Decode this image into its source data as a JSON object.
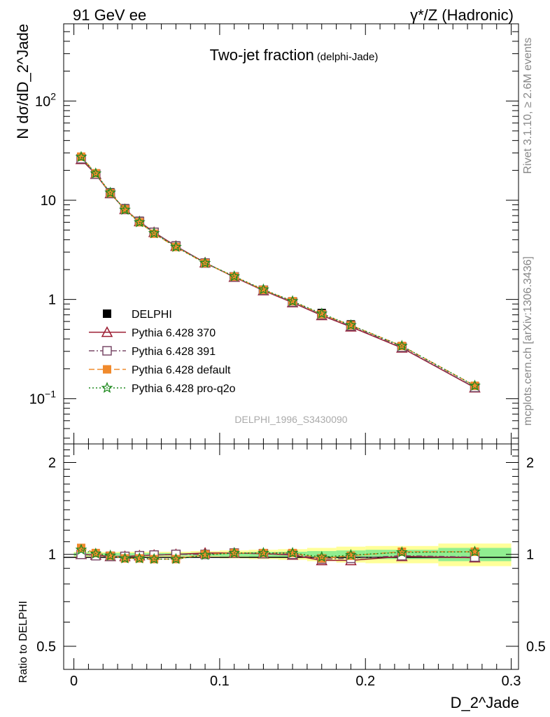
{
  "header": {
    "left": "91 GeV ee",
    "right": "γ*/Z (Hadronic)"
  },
  "plot_title": {
    "main": "Two-jet fraction",
    "sub": "(delphi-Jade)"
  },
  "analysis_id": "DELPHI_1996_S3430090",
  "side_labels": {
    "rivet": "Rivet 3.1.10, ≥ 2.6M events",
    "mcplots": "mcplots.cern.ch [arXiv:1306.3436]"
  },
  "axes": {
    "upper_ylabel": "N dσ/dD_2^Jade",
    "lower_ylabel": "Ratio to DELPHI",
    "xlabel": "D_2^Jade"
  },
  "legend": [
    {
      "label": "DELPHI",
      "color": "#000000",
      "marker": "square-filled",
      "dash": "solid"
    },
    {
      "label": "Pythia 6.428 370",
      "color": "#9b1c31",
      "marker": "triangle-open",
      "dash": "solid"
    },
    {
      "label": "Pythia 6.428 391",
      "color": "#7a4a68",
      "marker": "square-open",
      "dash": "dashdot"
    },
    {
      "label": "Pythia 6.428 default",
      "color": "#f08a2c",
      "marker": "square-filled",
      "dash": "dashed"
    },
    {
      "label": "Pythia 6.428 pro-q2o",
      "color": "#1f8a1f",
      "marker": "star",
      "dash": "dotted"
    }
  ],
  "chart_data": [
    {
      "type": "line",
      "panel": "main",
      "log_y": true,
      "xlim": [
        -0.007,
        0.305
      ],
      "ylim": [
        0.035,
        600
      ],
      "y_tick_labels": [
        "10^-1",
        "1",
        "10",
        "10^2"
      ],
      "x": [
        0.005,
        0.015,
        0.025,
        0.035,
        0.045,
        0.055,
        0.07,
        0.09,
        0.11,
        0.13,
        0.15,
        0.17,
        0.19,
        0.225,
        0.275
      ],
      "series": [
        {
          "name": "DELPHI",
          "values": [
            26.5,
            18.5,
            12.0,
            8.3,
            6.2,
            4.8,
            3.5,
            2.35,
            1.7,
            1.25,
            0.95,
            0.73,
            0.56,
            0.335,
            0.133
          ]
        },
        {
          "name": "Pythia 6.428 370",
          "values": [
            25.8,
            18.3,
            11.7,
            8.1,
            6.1,
            4.75,
            3.45,
            2.35,
            1.68,
            1.23,
            0.93,
            0.69,
            0.53,
            0.325,
            0.129
          ]
        },
        {
          "name": "Pythia 6.428 391",
          "values": [
            26.2,
            18.3,
            11.7,
            8.15,
            6.1,
            4.75,
            3.45,
            2.33,
            1.69,
            1.24,
            0.94,
            0.7,
            0.54,
            0.33,
            0.13
          ]
        },
        {
          "name": "Pythia 6.428 default",
          "values": [
            27.5,
            18.7,
            11.8,
            8.1,
            6.0,
            4.6,
            3.38,
            2.32,
            1.7,
            1.25,
            0.96,
            0.71,
            0.55,
            0.34,
            0.135
          ]
        },
        {
          "name": "Pythia 6.428 pro-q2o",
          "values": [
            27.3,
            18.6,
            11.9,
            8.0,
            6.0,
            4.65,
            3.38,
            2.33,
            1.71,
            1.26,
            0.96,
            0.72,
            0.55,
            0.34,
            0.135
          ]
        }
      ]
    },
    {
      "type": "line",
      "panel": "ratio",
      "log_y": true,
      "xlim": [
        -0.007,
        0.305
      ],
      "ylim": [
        0.42,
        2.3
      ],
      "y_tick_labels": [
        "0.5",
        "1",
        "2"
      ],
      "x_tick_labels": [
        "0",
        "0.1",
        "0.2",
        "0.3"
      ],
      "x": [
        0.005,
        0.015,
        0.025,
        0.035,
        0.045,
        0.055,
        0.07,
        0.09,
        0.11,
        0.13,
        0.15,
        0.17,
        0.19,
        0.225,
        0.275
      ],
      "band_edges": [
        0.0,
        0.01,
        0.02,
        0.03,
        0.04,
        0.05,
        0.06,
        0.08,
        0.1,
        0.12,
        0.14,
        0.16,
        0.18,
        0.2,
        0.25,
        0.3
      ],
      "band_stat": [
        0.012,
        0.01,
        0.01,
        0.01,
        0.01,
        0.01,
        0.01,
        0.012,
        0.015,
        0.018,
        0.02,
        0.025,
        0.03,
        0.035,
        0.05
      ],
      "band_total": [
        0.02,
        0.018,
        0.018,
        0.02,
        0.02,
        0.02,
        0.02,
        0.025,
        0.03,
        0.035,
        0.04,
        0.05,
        0.06,
        0.065,
        0.085
      ],
      "band_colors": {
        "stat": "#90ee90",
        "total": "#ffff99"
      },
      "series": [
        {
          "name": "Pythia 6.428 370",
          "values": [
            1.0,
            0.995,
            0.985,
            0.985,
            0.99,
            0.995,
            1.0,
            1.01,
            1.01,
            1.005,
            0.995,
            0.955,
            0.955,
            0.985,
            0.975
          ]
        },
        {
          "name": "Pythia 6.428 391",
          "values": [
            1.0,
            0.99,
            0.985,
            0.985,
            0.99,
            0.995,
            1.0,
            1.0,
            1.01,
            1.005,
            1.0,
            0.965,
            0.97,
            0.99,
            0.98
          ]
        },
        {
          "name": "Pythia 6.428 default",
          "values": [
            1.05,
            1.01,
            0.99,
            0.97,
            0.97,
            0.965,
            0.965,
            1.0,
            1.01,
            1.01,
            1.01,
            0.97,
            0.99,
            1.02,
            1.02
          ]
        },
        {
          "name": "Pythia 6.428 pro-q2o",
          "values": [
            1.035,
            1.005,
            0.99,
            0.97,
            0.97,
            0.965,
            0.965,
            0.995,
            1.01,
            1.01,
            1.01,
            0.98,
            0.995,
            1.015,
            1.02
          ]
        }
      ]
    }
  ]
}
